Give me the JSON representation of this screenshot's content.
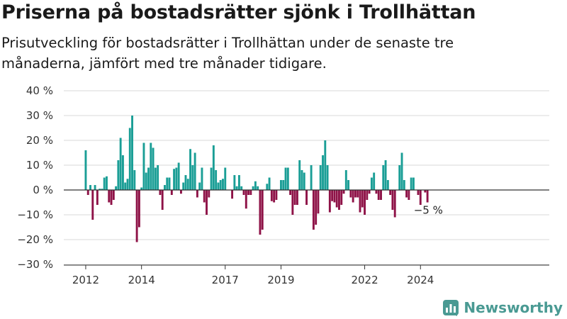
{
  "title": "Priserna på bostadsrätter sjönk i Trollhättan",
  "subtitle": "Prisutveckling för bostadsrätter i Trollhättan under de senaste tre månaderna, jämfört med tre månader tidigare.",
  "brand": {
    "name": "Newsworthy",
    "icon": "chart-logo-icon"
  },
  "colors": {
    "positive": "#1a9e96",
    "negative": "#8e1247",
    "grid": "#d8d8d8",
    "zero_line": "#333333"
  },
  "chart_data": {
    "type": "bar",
    "ylim": [
      -30,
      40
    ],
    "y_ticks": [
      40,
      30,
      20,
      10,
      0,
      -10,
      -20,
      -30
    ],
    "y_tick_labels": [
      "40 %",
      "30 %",
      "20 %",
      "10 %",
      "0 %",
      "−10 %",
      "−20 %",
      "−30 %"
    ],
    "x_start": 2012.0,
    "x_step": 0.0833333,
    "x_ticks": [
      {
        "value": 2012,
        "label": "2012"
      },
      {
        "value": 2014,
        "label": "2014"
      },
      {
        "value": 2017,
        "label": "2017"
      },
      {
        "value": 2019,
        "label": "2019"
      },
      {
        "value": 2022,
        "label": "2022"
      },
      {
        "value": 2024,
        "label": "2024"
      }
    ],
    "grid": true,
    "last_value_label": "−5 %",
    "values": [
      16,
      -2,
      2,
      -12,
      2,
      -6,
      0.5,
      0.5,
      5,
      5.5,
      -5,
      -6,
      -4,
      1.5,
      12,
      21,
      14,
      3,
      4.5,
      25,
      30,
      8,
      -21,
      -15,
      1,
      19,
      7,
      9,
      19,
      17,
      9,
      10,
      -2,
      -8,
      2,
      5,
      5,
      -2,
      8.5,
      9,
      11,
      -1.5,
      3,
      6,
      4.5,
      16.5,
      10,
      15,
      -3,
      3,
      9,
      -5,
      -10,
      -3,
      9,
      18,
      8,
      3,
      4,
      4.5,
      9,
      0,
      0,
      -3.5,
      6,
      1.5,
      6,
      1.5,
      -2,
      -7.5,
      -2,
      -2,
      1.5,
      3.5,
      1.5,
      -18,
      -16,
      0,
      2.5,
      5,
      -4.5,
      -5,
      -4,
      0,
      4,
      4,
      9,
      9,
      -2,
      -10,
      -6,
      -6,
      12,
      8,
      7,
      -6,
      0,
      10,
      -16,
      -14,
      -9.5,
      10,
      14,
      20,
      10,
      -9,
      -4.5,
      -5,
      -7,
      -8,
      -6,
      -1.5,
      8,
      4,
      -3,
      -5,
      -3,
      -3,
      -9,
      -7,
      -10,
      -4,
      -1.5,
      5,
      7,
      -1.5,
      -4,
      -4,
      10,
      12,
      4,
      -2,
      -8,
      -11,
      0,
      10,
      15,
      4,
      -3,
      -4,
      5,
      5,
      0,
      -2,
      -6,
      0,
      -1,
      -5
    ]
  }
}
